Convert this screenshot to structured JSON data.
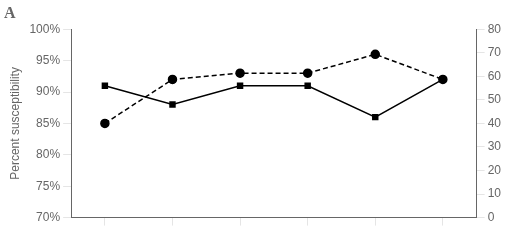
{
  "chart_data": {
    "type": "line",
    "title": "A",
    "ylabel": "Percent susceptibility",
    "x": [
      1,
      2,
      3,
      4,
      5,
      6
    ],
    "xlim": [
      0.5,
      6.5
    ],
    "xticks": [
      1,
      2,
      3,
      4,
      5,
      6
    ],
    "ylim": [
      70,
      100
    ],
    "yticks": [
      {
        "value": 70,
        "label": "70%"
      },
      {
        "value": 75,
        "label": "75%"
      },
      {
        "value": 80,
        "label": "80%"
      },
      {
        "value": 85,
        "label": "85%"
      },
      {
        "value": 90,
        "label": "90%"
      },
      {
        "value": 95,
        "label": "95%"
      },
      {
        "value": 100,
        "label": "100%"
      }
    ],
    "y2lim": [
      0,
      80
    ],
    "y2ticks": [
      0,
      10,
      20,
      30,
      40,
      50,
      60,
      70,
      80
    ],
    "grid": false,
    "tick_labels": "y",
    "series": [
      {
        "color": "#000000",
        "marker": "square",
        "line_style": "solid",
        "values": [
          91,
          88,
          91,
          91,
          86,
          92
        ]
      },
      {
        "color": "#000000",
        "marker": "circle",
        "line_style": "dashed",
        "values": [
          85,
          92,
          93,
          93,
          96,
          92
        ]
      }
    ]
  }
}
